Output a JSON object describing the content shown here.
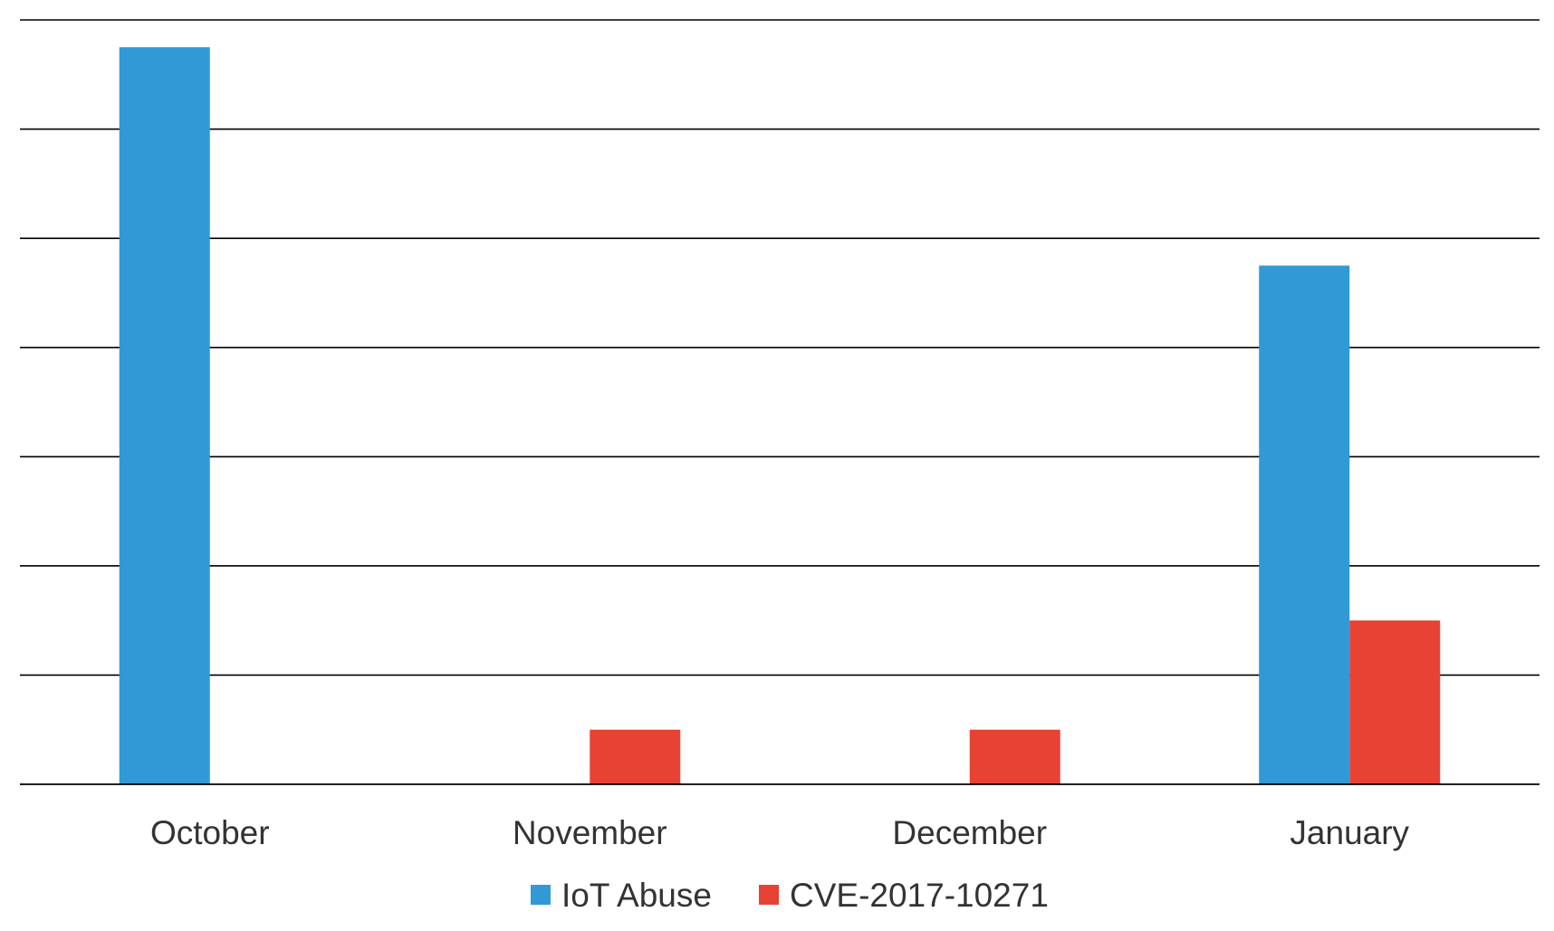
{
  "chart_data": {
    "type": "bar",
    "title": "",
    "xlabel": "",
    "ylabel": "",
    "categories": [
      "October",
      "November",
      "December",
      "January"
    ],
    "series": [
      {
        "name": "IoT Abuse",
        "color": "#3199d6",
        "values": [
          13.5,
          0,
          0,
          9.5
        ]
      },
      {
        "name": "CVE-2017-10271",
        "color": "#e84234",
        "values": [
          0,
          1,
          1,
          3
        ]
      }
    ],
    "ylim": [
      0,
      14
    ],
    "yticks": [
      0,
      2,
      4,
      6,
      8,
      10,
      12,
      14
    ],
    "ytick_labels_shown": false,
    "grid": true,
    "legend": "bottom-center"
  }
}
